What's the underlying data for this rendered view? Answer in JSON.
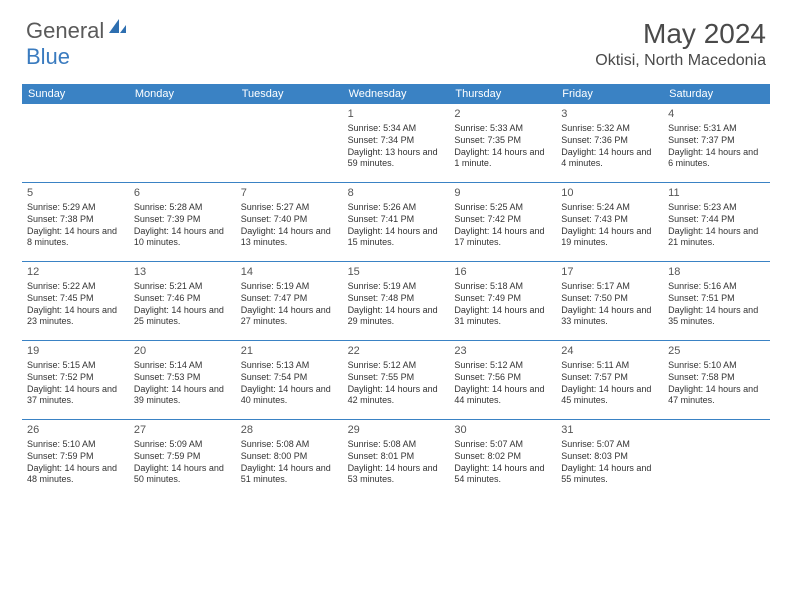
{
  "logo": {
    "part1": "General",
    "part2": "Blue"
  },
  "title": "May 2024",
  "location": "Oktisi, North Macedonia",
  "header_bg": "#3a82c4",
  "dayNames": [
    "Sunday",
    "Monday",
    "Tuesday",
    "Wednesday",
    "Thursday",
    "Friday",
    "Saturday"
  ],
  "weeks": [
    [
      null,
      null,
      null,
      {
        "n": "1",
        "sr": "Sunrise: 5:34 AM",
        "ss": "Sunset: 7:34 PM",
        "dl": "Daylight: 13 hours and 59 minutes."
      },
      {
        "n": "2",
        "sr": "Sunrise: 5:33 AM",
        "ss": "Sunset: 7:35 PM",
        "dl": "Daylight: 14 hours and 1 minute."
      },
      {
        "n": "3",
        "sr": "Sunrise: 5:32 AM",
        "ss": "Sunset: 7:36 PM",
        "dl": "Daylight: 14 hours and 4 minutes."
      },
      {
        "n": "4",
        "sr": "Sunrise: 5:31 AM",
        "ss": "Sunset: 7:37 PM",
        "dl": "Daylight: 14 hours and 6 minutes."
      }
    ],
    [
      {
        "n": "5",
        "sr": "Sunrise: 5:29 AM",
        "ss": "Sunset: 7:38 PM",
        "dl": "Daylight: 14 hours and 8 minutes."
      },
      {
        "n": "6",
        "sr": "Sunrise: 5:28 AM",
        "ss": "Sunset: 7:39 PM",
        "dl": "Daylight: 14 hours and 10 minutes."
      },
      {
        "n": "7",
        "sr": "Sunrise: 5:27 AM",
        "ss": "Sunset: 7:40 PM",
        "dl": "Daylight: 14 hours and 13 minutes."
      },
      {
        "n": "8",
        "sr": "Sunrise: 5:26 AM",
        "ss": "Sunset: 7:41 PM",
        "dl": "Daylight: 14 hours and 15 minutes."
      },
      {
        "n": "9",
        "sr": "Sunrise: 5:25 AM",
        "ss": "Sunset: 7:42 PM",
        "dl": "Daylight: 14 hours and 17 minutes."
      },
      {
        "n": "10",
        "sr": "Sunrise: 5:24 AM",
        "ss": "Sunset: 7:43 PM",
        "dl": "Daylight: 14 hours and 19 minutes."
      },
      {
        "n": "11",
        "sr": "Sunrise: 5:23 AM",
        "ss": "Sunset: 7:44 PM",
        "dl": "Daylight: 14 hours and 21 minutes."
      }
    ],
    [
      {
        "n": "12",
        "sr": "Sunrise: 5:22 AM",
        "ss": "Sunset: 7:45 PM",
        "dl": "Daylight: 14 hours and 23 minutes."
      },
      {
        "n": "13",
        "sr": "Sunrise: 5:21 AM",
        "ss": "Sunset: 7:46 PM",
        "dl": "Daylight: 14 hours and 25 minutes."
      },
      {
        "n": "14",
        "sr": "Sunrise: 5:19 AM",
        "ss": "Sunset: 7:47 PM",
        "dl": "Daylight: 14 hours and 27 minutes."
      },
      {
        "n": "15",
        "sr": "Sunrise: 5:19 AM",
        "ss": "Sunset: 7:48 PM",
        "dl": "Daylight: 14 hours and 29 minutes."
      },
      {
        "n": "16",
        "sr": "Sunrise: 5:18 AM",
        "ss": "Sunset: 7:49 PM",
        "dl": "Daylight: 14 hours and 31 minutes."
      },
      {
        "n": "17",
        "sr": "Sunrise: 5:17 AM",
        "ss": "Sunset: 7:50 PM",
        "dl": "Daylight: 14 hours and 33 minutes."
      },
      {
        "n": "18",
        "sr": "Sunrise: 5:16 AM",
        "ss": "Sunset: 7:51 PM",
        "dl": "Daylight: 14 hours and 35 minutes."
      }
    ],
    [
      {
        "n": "19",
        "sr": "Sunrise: 5:15 AM",
        "ss": "Sunset: 7:52 PM",
        "dl": "Daylight: 14 hours and 37 minutes."
      },
      {
        "n": "20",
        "sr": "Sunrise: 5:14 AM",
        "ss": "Sunset: 7:53 PM",
        "dl": "Daylight: 14 hours and 39 minutes."
      },
      {
        "n": "21",
        "sr": "Sunrise: 5:13 AM",
        "ss": "Sunset: 7:54 PM",
        "dl": "Daylight: 14 hours and 40 minutes."
      },
      {
        "n": "22",
        "sr": "Sunrise: 5:12 AM",
        "ss": "Sunset: 7:55 PM",
        "dl": "Daylight: 14 hours and 42 minutes."
      },
      {
        "n": "23",
        "sr": "Sunrise: 5:12 AM",
        "ss": "Sunset: 7:56 PM",
        "dl": "Daylight: 14 hours and 44 minutes."
      },
      {
        "n": "24",
        "sr": "Sunrise: 5:11 AM",
        "ss": "Sunset: 7:57 PM",
        "dl": "Daylight: 14 hours and 45 minutes."
      },
      {
        "n": "25",
        "sr": "Sunrise: 5:10 AM",
        "ss": "Sunset: 7:58 PM",
        "dl": "Daylight: 14 hours and 47 minutes."
      }
    ],
    [
      {
        "n": "26",
        "sr": "Sunrise: 5:10 AM",
        "ss": "Sunset: 7:59 PM",
        "dl": "Daylight: 14 hours and 48 minutes."
      },
      {
        "n": "27",
        "sr": "Sunrise: 5:09 AM",
        "ss": "Sunset: 7:59 PM",
        "dl": "Daylight: 14 hours and 50 minutes."
      },
      {
        "n": "28",
        "sr": "Sunrise: 5:08 AM",
        "ss": "Sunset: 8:00 PM",
        "dl": "Daylight: 14 hours and 51 minutes."
      },
      {
        "n": "29",
        "sr": "Sunrise: 5:08 AM",
        "ss": "Sunset: 8:01 PM",
        "dl": "Daylight: 14 hours and 53 minutes."
      },
      {
        "n": "30",
        "sr": "Sunrise: 5:07 AM",
        "ss": "Sunset: 8:02 PM",
        "dl": "Daylight: 14 hours and 54 minutes."
      },
      {
        "n": "31",
        "sr": "Sunrise: 5:07 AM",
        "ss": "Sunset: 8:03 PM",
        "dl": "Daylight: 14 hours and 55 minutes."
      },
      null
    ]
  ]
}
